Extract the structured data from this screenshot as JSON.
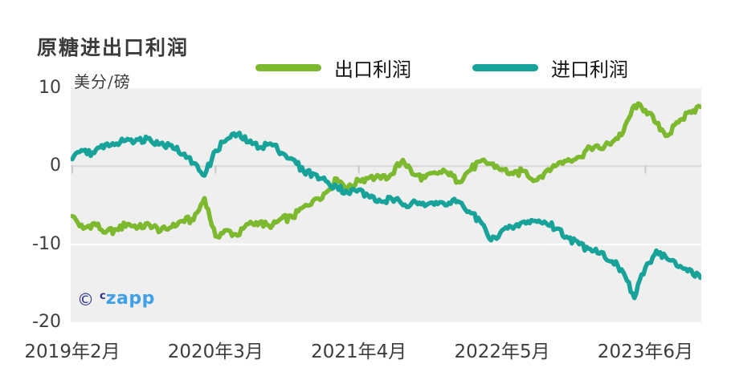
{
  "header": {
    "title": "原糖进出口利润",
    "unit_label": "美分/磅"
  },
  "legend": [
    {
      "label": "出口利润",
      "color": "#7cb92e"
    },
    {
      "label": "进口利润",
      "color": "#17a39a"
    }
  ],
  "watermark": {
    "copyright_symbol": "©",
    "prefix": "c",
    "name": "zapp"
  },
  "colors": {
    "export_line": "#7cb92e",
    "import_line": "#17a39a",
    "plot_background": "#efefef",
    "zero_gridline": "#d8d8d8",
    "minor_gridline": "#ffffff",
    "axis_tick": "#c9c9c9",
    "axis_text": "#3d3d3d",
    "title_text": "#3b3b3b",
    "watermark_navy": "#2e3192",
    "watermark_blue": "#3fa0e8"
  },
  "chart_data": {
    "type": "line",
    "title": "原糖进出口利润",
    "ylabel": "美分/磅",
    "ylim": [
      -20,
      10
    ],
    "y_ticks": [
      10,
      0,
      -10,
      -20
    ],
    "x_tick_labels": [
      "2019年2月",
      "2020年3月",
      "2021年4月",
      "2022年5月",
      "2023年6月"
    ],
    "x_tick_month_indices": [
      0,
      13,
      26,
      39,
      52
    ],
    "x_unit": "months, monthly samples from 2019-02",
    "grid": "horizontal",
    "legend_position": "top",
    "series": [
      {
        "name": "出口利润",
        "color": "#7cb92e",
        "values": [
          -6.4,
          -8.0,
          -7.3,
          -8.5,
          -8.1,
          -7.4,
          -7.8,
          -7.5,
          -8.3,
          -7.8,
          -7.0,
          -6.9,
          -4.1,
          -9.0,
          -8.2,
          -8.9,
          -7.4,
          -7.2,
          -7.9,
          -6.7,
          -6.6,
          -5.2,
          -4.2,
          -3.4,
          -1.6,
          -2.8,
          -1.8,
          -1.4,
          -1.6,
          -1.0,
          0.8,
          -1.1,
          -1.5,
          -0.9,
          -0.8,
          -2.0,
          -0.6,
          0.6,
          0.3,
          -0.4,
          -1.0,
          -0.6,
          -1.8,
          -0.6,
          0.2,
          0.9,
          1.2,
          2.4,
          2.2,
          3.1,
          4.4,
          7.8,
          7.2,
          5.5,
          3.9,
          5.6,
          7.0,
          7.6
        ]
      },
      {
        "name": "进口利润",
        "color": "#17a39a",
        "values": [
          0.9,
          2.0,
          1.7,
          2.8,
          2.9,
          3.5,
          3.4,
          3.6,
          2.9,
          2.7,
          1.5,
          0.4,
          -1.2,
          2.0,
          3.4,
          4.1,
          3.1,
          2.4,
          2.9,
          1.7,
          0.9,
          -0.7,
          -1.0,
          -1.9,
          -2.6,
          -3.4,
          -3.0,
          -4.0,
          -4.5,
          -4.2,
          -5.0,
          -4.4,
          -5.1,
          -4.6,
          -5.0,
          -4.5,
          -5.8,
          -7.0,
          -9.5,
          -8.2,
          -8.0,
          -7.1,
          -7.0,
          -7.3,
          -8.0,
          -9.2,
          -10.0,
          -10.6,
          -11.0,
          -12.2,
          -13.6,
          -16.9,
          -13.0,
          -10.8,
          -11.9,
          -12.9,
          -13.2,
          -14.3
        ]
      }
    ]
  }
}
